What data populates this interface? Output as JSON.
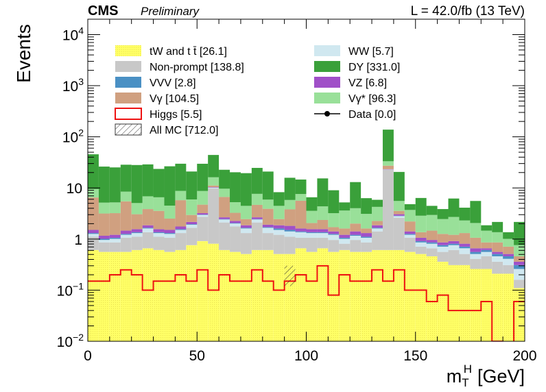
{
  "header": {
    "experiment": "CMS",
    "status": "Preliminary",
    "lumi": "L = 42.0/fb (13 TeV)"
  },
  "chart_data": {
    "type": "bar",
    "stacked": true,
    "log_y": true,
    "xlabel_main": "m",
    "xlabel_sup": "H",
    "xlabel_sub": "T",
    "xlabel_unit": "[GeV]",
    "ylabel": "Events",
    "xlim": [
      0,
      200
    ],
    "ylim": [
      0.01,
      20000
    ],
    "bin_width": 5,
    "x_ticks": [
      {
        "value": 0,
        "label": "0"
      },
      {
        "value": 50,
        "label": "50"
      },
      {
        "value": 100,
        "label": "100"
      },
      {
        "value": 150,
        "label": "150"
      },
      {
        "value": 200,
        "label": "200"
      }
    ],
    "y_ticks": [
      {
        "value": 0.01,
        "base": "10",
        "exp": "−2"
      },
      {
        "value": 0.1,
        "base": "10",
        "exp": "−1"
      },
      {
        "value": 1,
        "base": "1",
        "exp": ""
      },
      {
        "value": 10,
        "base": "10",
        "exp": ""
      },
      {
        "value": 100,
        "base": "10",
        "exp": "2"
      },
      {
        "value": 1000,
        "base": "10",
        "exp": "3"
      },
      {
        "value": 10000,
        "base": "10",
        "exp": "4"
      }
    ],
    "stack_order": [
      "tW",
      "Nonprompt",
      "WW",
      "VVV",
      "VZ",
      "Vg",
      "Vgstar",
      "DY"
    ],
    "series": {
      "tW": {
        "name": "tW and t t̄ [26.1]",
        "color": "#ffff66",
        "values": [
          0.6,
          0.55,
          0.55,
          0.55,
          0.6,
          0.65,
          0.6,
          0.55,
          0.6,
          0.75,
          0.9,
          0.8,
          0.6,
          0.55,
          0.5,
          0.6,
          0.6,
          0.5,
          0.5,
          0.65,
          0.55,
          0.65,
          0.55,
          0.6,
          0.55,
          0.55,
          0.6,
          0.6,
          0.6,
          0.55,
          0.5,
          0.45,
          0.35,
          0.3,
          0.3,
          0.25,
          0.25,
          0.2,
          0.2,
          0.1
        ]
      },
      "Nonprompt": {
        "name": "Non-prompt [138.8]",
        "color": "#c8c8c8",
        "values": [
          0.5,
          0.3,
          0.3,
          0.5,
          0.5,
          0.7,
          0.5,
          0.5,
          0.7,
          0.9,
          1.8,
          9,
          1.5,
          1.2,
          0.8,
          1.5,
          0.7,
          0.7,
          0.6,
          0.4,
          0.5,
          0.4,
          0.4,
          0.2,
          0.4,
          0.3,
          0.8,
          22,
          2,
          0.5,
          0.2,
          0.2,
          0.2,
          0.3,
          0.2,
          0.15,
          0.2,
          0.15,
          0.1,
          0.05
        ]
      },
      "WW": {
        "name": "WW [5.7]",
        "color": "#d0e8f0",
        "values": [
          0.15,
          0.1,
          0.15,
          0.15,
          0.2,
          0.25,
          0.2,
          0.2,
          0.2,
          0.25,
          0.25,
          0.3,
          0.3,
          0.25,
          0.3,
          0.3,
          0.35,
          0.3,
          0.3,
          0.3,
          0.25,
          0.25,
          0.25,
          0.2,
          0.2,
          0.2,
          0.2,
          0.2,
          0.2,
          0.15,
          0.15,
          0.15,
          0.15,
          0.15,
          0.15,
          0.1,
          0.1,
          0.1,
          0.1,
          0.1
        ]
      },
      "VVV": {
        "name": "VVV [2.8]",
        "color": "#4a90c4",
        "values": [
          0.05,
          0.05,
          0.05,
          0.05,
          0.05,
          0.05,
          0.05,
          0.05,
          0.05,
          0.05,
          0.05,
          0.05,
          0.05,
          0.05,
          0.05,
          0.05,
          0.05,
          0.1,
          0.1,
          0.05,
          0.05,
          0.05,
          0.05,
          0.05,
          0.05,
          0.05,
          0.05,
          0.15,
          0.05,
          0.05,
          0.05,
          0.05,
          0.05,
          0.05,
          0.05,
          0.05,
          0.05,
          0.05,
          0.05,
          0.05
        ]
      },
      "VZ": {
        "name": "VZ [6.8]",
        "color": "#a050c8",
        "values": [
          0.2,
          0.15,
          0.15,
          0.2,
          0.2,
          0.2,
          0.2,
          0.2,
          0.2,
          0.2,
          0.2,
          0.2,
          0.2,
          0.2,
          0.2,
          0.2,
          0.2,
          0.25,
          0.3,
          0.2,
          0.2,
          0.2,
          0.15,
          0.15,
          0.2,
          0.2,
          0.2,
          0.3,
          0.2,
          0.15,
          0.15,
          0.1,
          0.1,
          0.1,
          0.1,
          0.1,
          0.05,
          0.05,
          0.05,
          0.05
        ]
      },
      "Vg": {
        "name": "Vγ [104.5]",
        "color": "#d0a080",
        "values": [
          5,
          2,
          2,
          4,
          1.5,
          2,
          2,
          1,
          4,
          0.8,
          1.5,
          0.8,
          4,
          1,
          0.6,
          2,
          2,
          0.6,
          2,
          4,
          0.5,
          0.8,
          0.3,
          0.4,
          0.6,
          0.3,
          0.4,
          4,
          0.5,
          0.8,
          0.3,
          0.5,
          0.4,
          0.3,
          0.5,
          0.4,
          0.2,
          0.3,
          0.2,
          0.1
        ]
      },
      "Vgstar": {
        "name": "Vγ* [96.3]",
        "color": "#99e099",
        "values": [
          3,
          2,
          2,
          3,
          2,
          3,
          3,
          2,
          3,
          3,
          4,
          5,
          3,
          2,
          2,
          3,
          2,
          2,
          2,
          2,
          1.5,
          2,
          1.5,
          2,
          2,
          1.5,
          2,
          6,
          2,
          1.5,
          1.5,
          1.5,
          1.2,
          1.5,
          1,
          1,
          0.6,
          0.5,
          0.3,
          0.3
        ]
      },
      "DY": {
        "name": "DY [331.0]",
        "color": "#3aa03a",
        "values": [
          36,
          21,
          20,
          20,
          23,
          22,
          17,
          22,
          21,
          15,
          21,
          28,
          13,
          15,
          15,
          17,
          15,
          3.8,
          10,
          7,
          3,
          11,
          5.8,
          1.6,
          9,
          3.2,
          1.6,
          105,
          15,
          1.1,
          3.5,
          1.5,
          1.4,
          3.5,
          1.8,
          3.5,
          0.4,
          0.8,
          0.35,
          1.4
        ]
      }
    },
    "higgs": {
      "name": "Higgs [5.5]",
      "color": "#ee1111",
      "values": [
        0.15,
        0.15,
        0.2,
        0.25,
        0.2,
        0.1,
        0.15,
        0.15,
        0.2,
        0.15,
        0.25,
        0.1,
        0.2,
        0.15,
        0.15,
        0.25,
        0.15,
        0.1,
        0.15,
        0.2,
        0.15,
        0.3,
        0.08,
        0.2,
        0.15,
        0.15,
        0.25,
        0.15,
        0.25,
        0.1,
        0.1,
        0.06,
        0.08,
        0.04,
        0.04,
        0.04,
        0.06,
        0.01,
        0.005,
        0.06
      ]
    },
    "all_mc": {
      "name": "All MC [712.0]",
      "uncertainty_bin": {
        "x": 92.5,
        "low": 0.12,
        "high": 0.3
      }
    },
    "data": {
      "name": "Data [0.0]"
    },
    "legend": {
      "placement": "top",
      "left_column": [
        "tW",
        "Nonprompt",
        "VVV",
        "Vg",
        "higgs",
        "all_mc"
      ],
      "right_column": [
        "WW",
        "DY",
        "VZ",
        "Vgstar",
        "data"
      ]
    }
  }
}
